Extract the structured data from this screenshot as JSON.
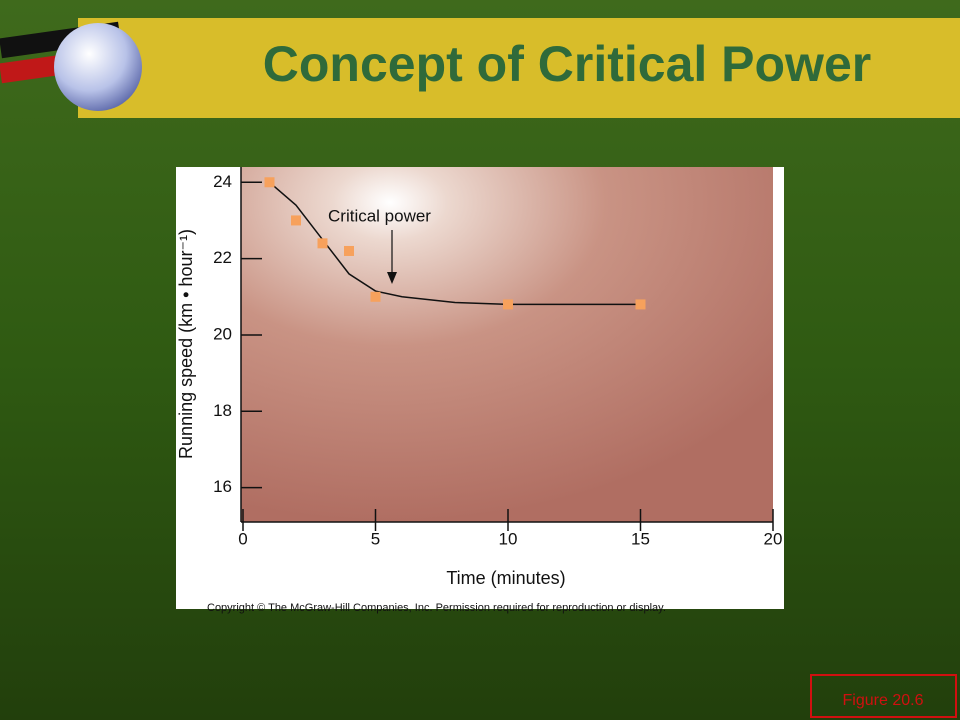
{
  "slide": {
    "title": "Concept of Critical Power",
    "figure_label": "Figure 20.6",
    "copyright": "Copyright © The McGraw-Hill Companies, Inc. Permission required for reproduction or display."
  },
  "chart_data": {
    "type": "scatter",
    "x_label": "Time (minutes)",
    "y_label": "Running speed (km • hour⁻¹)",
    "annotations": [
      "Critical power"
    ],
    "xlim": [
      0,
      20
    ],
    "xticks": [
      0,
      5,
      10,
      15,
      20
    ],
    "ylim": [
      15.1,
      24.4
    ],
    "yticks": [
      16,
      18,
      20,
      22,
      24
    ],
    "series": [
      {
        "mode": "markers",
        "color": "#f7a15c",
        "x": [
          1,
          2,
          3,
          4,
          5,
          10,
          15
        ],
        "values": [
          24,
          23,
          22.4,
          22.2,
          21,
          20.8,
          20.8
        ]
      },
      {
        "mode": "line",
        "color": "#111111",
        "x": [
          1,
          2,
          3,
          4,
          5,
          6,
          8,
          10,
          15
        ],
        "values": [
          24,
          23.4,
          22.5,
          21.6,
          21.15,
          21,
          20.85,
          20.8,
          20.8
        ]
      }
    ]
  }
}
